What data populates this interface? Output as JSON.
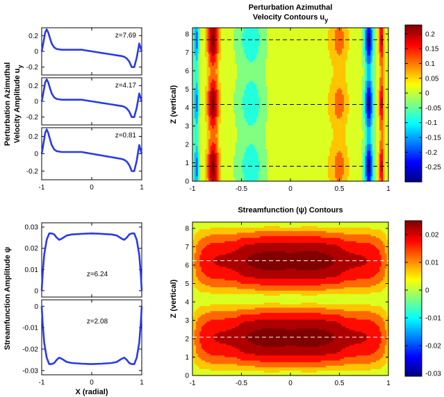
{
  "chart_data": [
    {
      "id": "uy-amplitudes",
      "type": "line",
      "ylabel_lines": [
        "Perturbation Azimuthal",
        "Velocity Amplitude u"
      ],
      "ylabel_sub": "y",
      "xlim": [
        -1,
        1
      ],
      "xticks": [
        "-1",
        "0",
        "1"
      ],
      "ylim": [
        -0.3,
        0.3
      ],
      "yticks": [
        "-0.2",
        "0",
        "0.2"
      ],
      "panels": [
        {
          "label": "z=7.69",
          "x": [
            -1,
            -0.97,
            -0.93,
            -0.9,
            -0.87,
            -0.83,
            -0.8,
            -0.75,
            -0.7,
            -0.6,
            -0.5,
            -0.4,
            -0.3,
            -0.2,
            -0.1,
            0,
            0.1,
            0.2,
            0.3,
            0.4,
            0.5,
            0.6,
            0.65,
            0.7,
            0.75,
            0.8,
            0.85,
            0.9,
            0.95,
            1
          ],
          "y": [
            0,
            0.1,
            0.24,
            0.28,
            0.24,
            0.16,
            0.1,
            0.05,
            0.03,
            0.02,
            0.02,
            0.02,
            0.02,
            0.02,
            0.01,
            0,
            -0.01,
            -0.02,
            -0.03,
            -0.04,
            -0.05,
            -0.06,
            -0.07,
            -0.09,
            -0.13,
            -0.2,
            -0.2,
            -0.08,
            0.1,
            0
          ]
        },
        {
          "label": "z=4.17",
          "x": [
            -1,
            -0.97,
            -0.93,
            -0.9,
            -0.87,
            -0.83,
            -0.8,
            -0.75,
            -0.7,
            -0.6,
            -0.5,
            -0.4,
            -0.3,
            -0.2,
            -0.1,
            0,
            0.1,
            0.2,
            0.3,
            0.4,
            0.5,
            0.6,
            0.65,
            0.7,
            0.75,
            0.8,
            0.85,
            0.9,
            0.95,
            1
          ],
          "y": [
            0,
            0.1,
            0.24,
            0.28,
            0.24,
            0.16,
            0.1,
            0.05,
            0.03,
            0.02,
            0.02,
            0.02,
            0.02,
            0.02,
            0.01,
            0,
            -0.01,
            -0.02,
            -0.03,
            -0.04,
            -0.05,
            -0.06,
            -0.07,
            -0.09,
            -0.13,
            -0.2,
            -0.2,
            -0.08,
            0.1,
            0
          ]
        },
        {
          "label": "z=0.81",
          "x": [
            -1,
            -0.97,
            -0.93,
            -0.9,
            -0.87,
            -0.83,
            -0.8,
            -0.75,
            -0.7,
            -0.6,
            -0.5,
            -0.4,
            -0.3,
            -0.2,
            -0.1,
            0,
            0.1,
            0.2,
            0.3,
            0.4,
            0.5,
            0.6,
            0.65,
            0.7,
            0.75,
            0.8,
            0.85,
            0.9,
            0.95,
            1
          ],
          "y": [
            0,
            0.1,
            0.24,
            0.28,
            0.24,
            0.16,
            0.1,
            0.05,
            0.03,
            0.02,
            0.02,
            0.02,
            0.02,
            0.02,
            0.01,
            0,
            -0.01,
            -0.02,
            -0.03,
            -0.04,
            -0.05,
            -0.06,
            -0.07,
            -0.09,
            -0.13,
            -0.2,
            -0.2,
            -0.08,
            0.1,
            0
          ]
        }
      ]
    },
    {
      "id": "uy-contours",
      "type": "heatmap",
      "title_lines": [
        "Perturbation Azimuthal",
        "Velocity Contours  u"
      ],
      "title_sub": "y",
      "ylabel": "Z (vertical)",
      "xlim": [
        -1,
        1
      ],
      "xticks": [
        "-1",
        "-0.5",
        "0",
        "0.5",
        "1"
      ],
      "ylim": [
        0,
        8.34
      ],
      "yticks": [
        "0",
        "1",
        "2",
        "3",
        "4",
        "5",
        "6",
        "7",
        "8"
      ],
      "dashed_z": [
        0.81,
        4.17,
        7.69
      ],
      "colorbar": {
        "min": -0.3,
        "max": 0.23,
        "ticks": [
          "0.2",
          "0.15",
          "0.1",
          "0.05",
          "0",
          "-0.05",
          "-0.1",
          "-0.15",
          "-0.2",
          "-0.25"
        ]
      }
    },
    {
      "id": "psi-amplitudes",
      "type": "line",
      "ylabel": "Streamfunction Amplitude  ψ",
      "xlabel": "X (radial)",
      "xlim": [
        -1,
        1
      ],
      "xticks": [
        "-1",
        "0",
        "1"
      ],
      "panels": [
        {
          "label": "z=6.24",
          "ylim": [
            -0.003,
            0.032
          ],
          "yticks": [
            "0.03",
            "0.02",
            "0.01",
            "0"
          ],
          "x": [
            -1,
            -0.98,
            -0.95,
            -0.9,
            -0.85,
            -0.8,
            -0.75,
            -0.7,
            -0.65,
            -0.6,
            -0.5,
            -0.4,
            -0.2,
            0,
            0.2,
            0.4,
            0.5,
            0.6,
            0.65,
            0.7,
            0.75,
            0.8,
            0.85,
            0.9,
            0.95,
            0.98,
            1
          ],
          "y": [
            0,
            0.008,
            0.017,
            0.024,
            0.027,
            0.027,
            0.0265,
            0.025,
            0.024,
            0.0245,
            0.026,
            0.0265,
            0.0268,
            0.027,
            0.0268,
            0.0265,
            0.026,
            0.0245,
            0.024,
            0.025,
            0.0265,
            0.027,
            0.027,
            0.024,
            0.017,
            0.008,
            0
          ]
        },
        {
          "label": "z=2.08",
          "ylim": [
            -0.032,
            0.003
          ],
          "yticks": [
            "0",
            "-0.01",
            "-0.02",
            "-0.03"
          ],
          "x": [
            -1,
            -0.98,
            -0.95,
            -0.9,
            -0.85,
            -0.8,
            -0.75,
            -0.7,
            -0.65,
            -0.6,
            -0.5,
            -0.4,
            -0.2,
            0,
            0.2,
            0.4,
            0.5,
            0.6,
            0.65,
            0.7,
            0.75,
            0.8,
            0.85,
            0.9,
            0.95,
            0.98,
            1
          ],
          "y": [
            0,
            -0.008,
            -0.017,
            -0.024,
            -0.027,
            -0.027,
            -0.0265,
            -0.025,
            -0.024,
            -0.0245,
            -0.026,
            -0.0265,
            -0.0268,
            -0.027,
            -0.0268,
            -0.0265,
            -0.026,
            -0.0245,
            -0.024,
            -0.025,
            -0.0265,
            -0.027,
            -0.027,
            -0.024,
            -0.017,
            -0.008,
            0
          ]
        }
      ]
    },
    {
      "id": "psi-contours",
      "type": "heatmap",
      "title": "Streamfunction (ψ) Contours",
      "ylabel": "Z (vertical)",
      "xlim": [
        -1,
        1
      ],
      "xticks": [
        "-1",
        "-0.5",
        "0",
        "0.5",
        "1"
      ],
      "ylim": [
        0,
        8.34
      ],
      "yticks": [
        "0",
        "1",
        "2",
        "3",
        "4",
        "5",
        "6",
        "7",
        "8"
      ],
      "dashed_z": [
        2.08,
        6.24
      ],
      "colorbar": {
        "min": -0.031,
        "max": 0.025,
        "ticks": [
          "0.02",
          "0.01",
          "0",
          "-0.01",
          "-0.02",
          "-0.03"
        ]
      }
    }
  ]
}
